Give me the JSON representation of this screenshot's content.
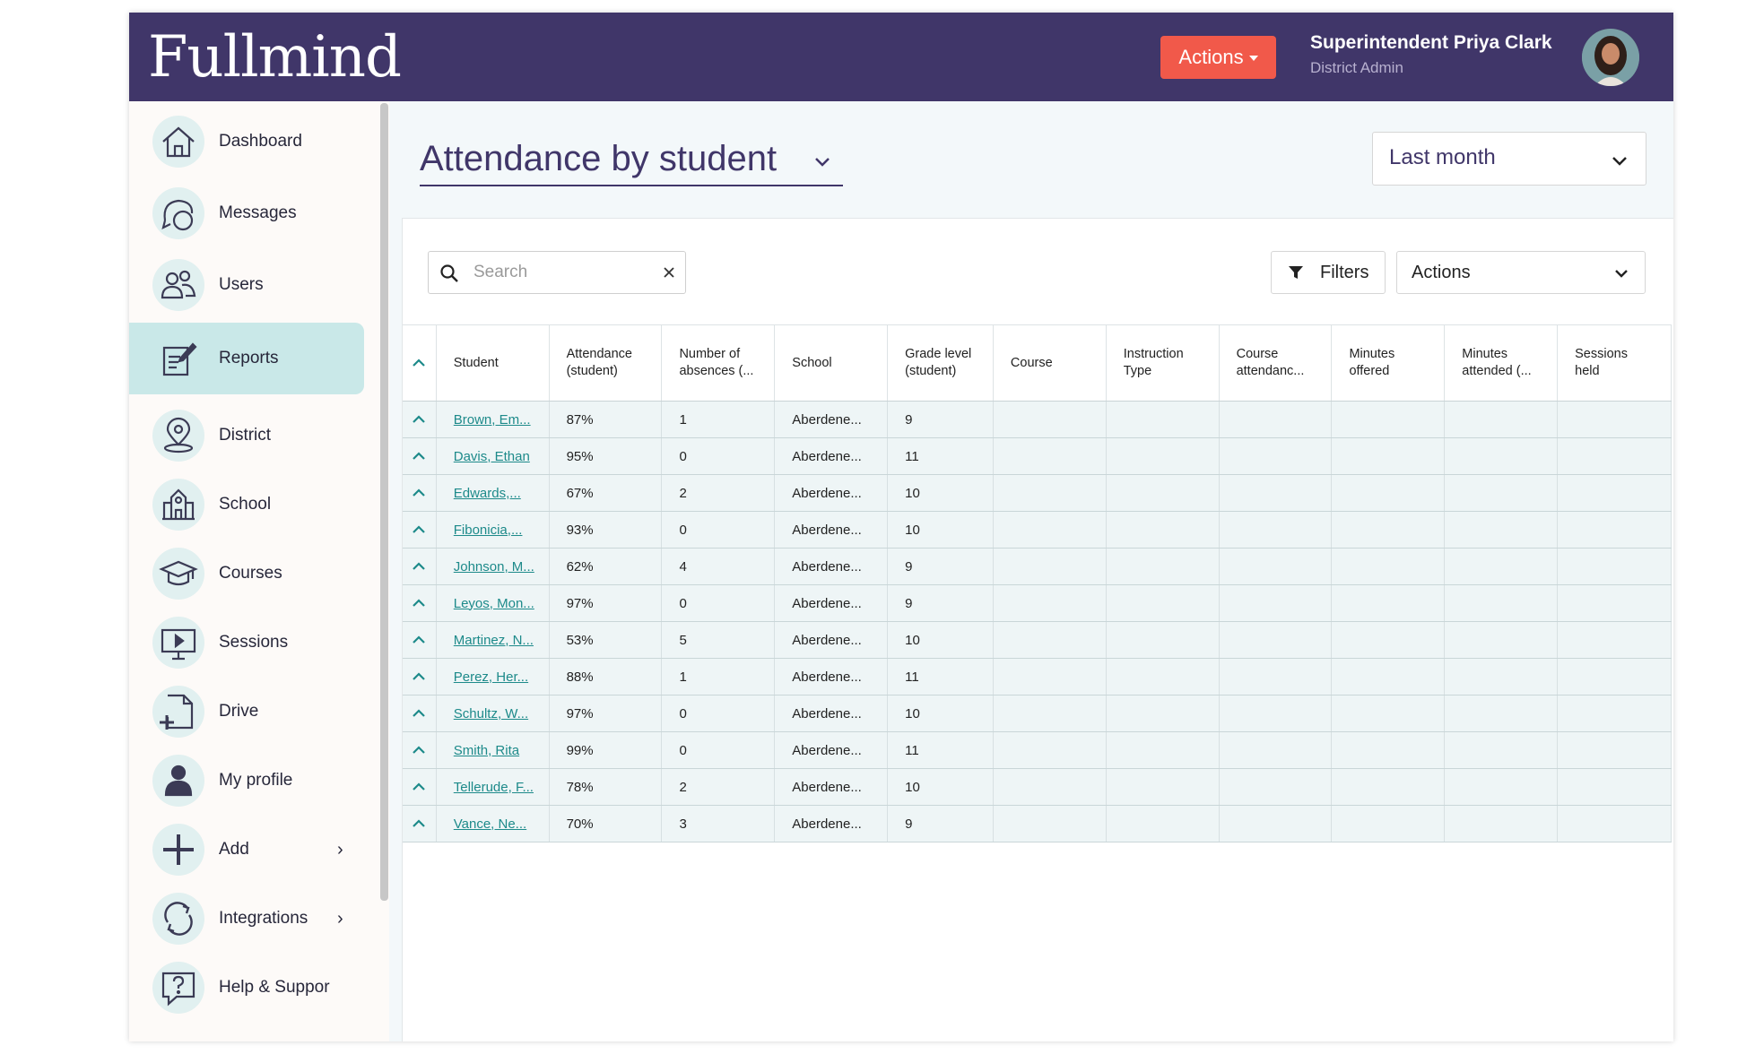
{
  "header": {
    "logo": "Fullmind",
    "actions_label": "Actions",
    "user_name": "Superintendent Priya Clark",
    "user_role": "District Admin"
  },
  "sidebar": {
    "items": [
      {
        "label": "Dashboard",
        "icon": "home-icon"
      },
      {
        "label": "Messages",
        "icon": "chat-icon"
      },
      {
        "label": "Users",
        "icon": "users-icon"
      },
      {
        "label": "Reports",
        "icon": "report-icon",
        "active": true
      },
      {
        "label": "District",
        "icon": "location-pin-icon"
      },
      {
        "label": "School",
        "icon": "school-icon"
      },
      {
        "label": "Courses",
        "icon": "graduation-cap-icon"
      },
      {
        "label": "Sessions",
        "icon": "presentation-icon"
      },
      {
        "label": "Drive",
        "icon": "file-add-icon"
      },
      {
        "label": "My profile",
        "icon": "person-icon"
      },
      {
        "label": "Add",
        "icon": "plus-icon"
      },
      {
        "label": "Integrations",
        "icon": "sync-icon"
      },
      {
        "label": "Help & Suppor",
        "icon": "help-icon"
      }
    ]
  },
  "main": {
    "title": "Attendance by student",
    "period": "Last month",
    "search_placeholder": "Search",
    "filters_label": "Filters",
    "actions_label": "Actions"
  },
  "table": {
    "columns": [
      {
        "label": "Student",
        "line1": "Student",
        "line2": ""
      },
      {
        "label": "Attendance (student)",
        "line1": "Attendance",
        "line2": "(student)"
      },
      {
        "label": "Number of absences (...",
        "line1": "Number of",
        "line2": "absences (..."
      },
      {
        "label": "School",
        "line1": "School",
        "line2": ""
      },
      {
        "label": "Grade level (student)",
        "line1": "Grade level",
        "line2": "(student)"
      },
      {
        "label": "Course",
        "line1": "Course",
        "line2": ""
      },
      {
        "label": "Instruction Type",
        "line1": "Instruction",
        "line2": "Type"
      },
      {
        "label": "Course attendanc...",
        "line1": "Course",
        "line2": "attendanc..."
      },
      {
        "label": "Minutes offered",
        "line1": "Minutes",
        "line2": "offered"
      },
      {
        "label": "Minutes attended (...",
        "line1": "Minutes",
        "line2": "attended (..."
      },
      {
        "label": "Sessions held",
        "line1": "Sessions",
        "line2": "held"
      }
    ],
    "rows": [
      {
        "student": "Brown, Em...",
        "attendance": "87%",
        "absences": "1",
        "school": "Aberdene...",
        "grade": "9"
      },
      {
        "student": "Davis, Ethan",
        "attendance": "95%",
        "absences": "0",
        "school": "Aberdene...",
        "grade": "11"
      },
      {
        "student": "Edwards,...",
        "attendance": "67%",
        "absences": "2",
        "school": "Aberdene...",
        "grade": "10"
      },
      {
        "student": "Fibonicia,...",
        "attendance": "93%",
        "absences": "0",
        "school": "Aberdene...",
        "grade": "10"
      },
      {
        "student": "Johnson, M...",
        "attendance": "62%",
        "absences": "4",
        "school": "Aberdene...",
        "grade": "9"
      },
      {
        "student": "Leyos, Mon...",
        "attendance": "97%",
        "absences": "0",
        "school": "Aberdene...",
        "grade": "9"
      },
      {
        "student": "Martinez, N...",
        "attendance": "53%",
        "absences": "5",
        "school": "Aberdene...",
        "grade": "10"
      },
      {
        "student": "Perez, Her...",
        "attendance": "88%",
        "absences": "1",
        "school": "Aberdene...",
        "grade": "11"
      },
      {
        "student": "Schultz, W...",
        "attendance": "97%",
        "absences": "0",
        "school": "Aberdene...",
        "grade": "10"
      },
      {
        "student": "Smith, Rita",
        "attendance": "99%",
        "absences": "0",
        "school": "Aberdene...",
        "grade": "11"
      },
      {
        "student": "Tellerude, F...",
        "attendance": "78%",
        "absences": "2",
        "school": "Aberdene...",
        "grade": "10"
      },
      {
        "student": "Vance, Ne...",
        "attendance": "70%",
        "absences": "3",
        "school": "Aberdene...",
        "grade": "9"
      }
    ]
  },
  "colors": {
    "header_bg": "#403669",
    "accent_button": "#f1594a",
    "active_nav": "#c9e8e8",
    "link": "#1d8a8a"
  }
}
